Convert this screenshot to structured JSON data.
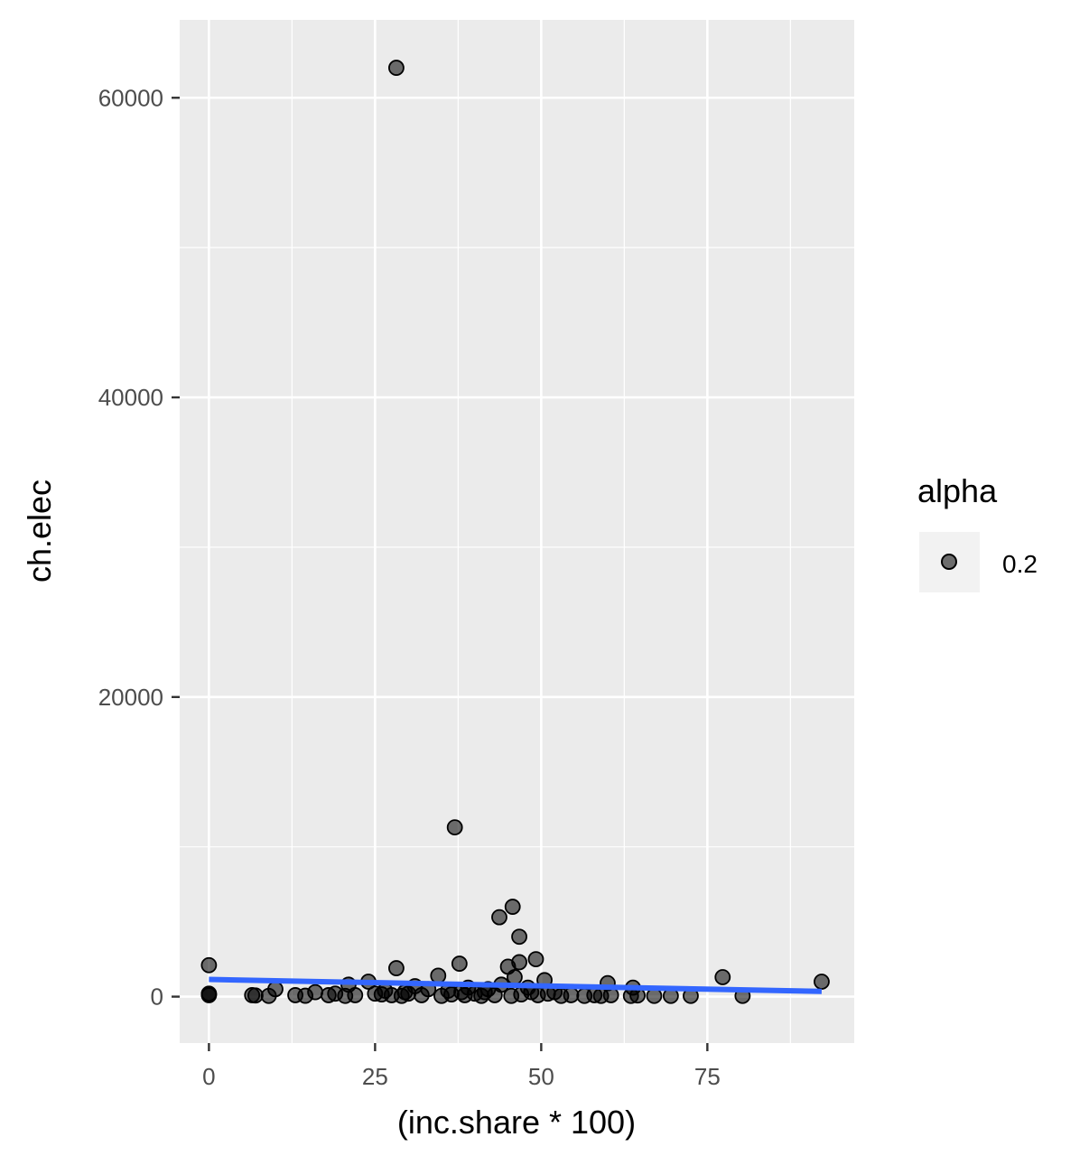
{
  "chart_data": {
    "type": "scatter",
    "title": "",
    "xlabel": "(inc.share * 100)",
    "ylabel": "ch.elec",
    "xlim": [
      -4.4,
      97.1
    ],
    "ylim": [
      -3100,
      65200
    ],
    "x_ticks": [
      0,
      25,
      50,
      75
    ],
    "y_ticks": [
      0,
      20000,
      40000,
      60000
    ],
    "x_tick_labels": [
      "0",
      "25",
      "50",
      "75"
    ],
    "y_tick_labels": [
      "0",
      "20000",
      "40000",
      "60000"
    ],
    "grid": true,
    "legend": {
      "title": "alpha",
      "placement": "right",
      "entries": [
        "0.2"
      ]
    },
    "colors": {
      "panel": "#ebebeb",
      "grid": "#ffffff",
      "point": "#000000",
      "point_alpha": 0.55,
      "trend": "#3366ff"
    },
    "points": [
      [
        28.2,
        62000
      ],
      [
        37.0,
        11300
      ],
      [
        45.7,
        6000
      ],
      [
        43.7,
        5300
      ],
      [
        46.7,
        4000
      ],
      [
        49.2,
        2500
      ],
      [
        46.7,
        2300
      ],
      [
        37.7,
        2200
      ],
      [
        0,
        2100
      ],
      [
        28.2,
        1900
      ],
      [
        45.0,
        2000
      ],
      [
        34.5,
        1400
      ],
      [
        46.0,
        1300
      ],
      [
        77.3,
        1300
      ],
      [
        50.5,
        1100
      ],
      [
        60.0,
        900
      ],
      [
        92.2,
        1000
      ],
      [
        24.0,
        1000
      ],
      [
        63.8,
        600
      ],
      [
        10.0,
        500
      ],
      [
        16.0,
        300
      ],
      [
        21.0,
        800
      ],
      [
        31.0,
        700
      ],
      [
        33.0,
        500
      ],
      [
        39.0,
        600
      ],
      [
        42.0,
        500
      ],
      [
        44.0,
        800
      ],
      [
        48.0,
        600
      ],
      [
        52.0,
        300
      ],
      [
        0,
        200
      ],
      [
        0,
        150
      ],
      [
        0,
        100
      ],
      [
        6.5,
        100
      ],
      [
        7.0,
        80
      ],
      [
        9.0,
        50
      ],
      [
        13.0,
        100
      ],
      [
        14.5,
        60
      ],
      [
        18.0,
        100
      ],
      [
        19.0,
        200
      ],
      [
        20.5,
        50
      ],
      [
        22.0,
        100
      ],
      [
        25.0,
        200
      ],
      [
        26.0,
        150
      ],
      [
        27.5,
        100
      ],
      [
        29.0,
        50
      ],
      [
        30.0,
        200
      ],
      [
        32.0,
        100
      ],
      [
        35.0,
        50
      ],
      [
        36.5,
        150
      ],
      [
        38.5,
        100
      ],
      [
        40.0,
        200
      ],
      [
        41.0,
        50
      ],
      [
        43.0,
        100
      ],
      [
        45.5,
        50
      ],
      [
        47.0,
        150
      ],
      [
        49.5,
        100
      ],
      [
        51.0,
        200
      ],
      [
        53.0,
        50
      ],
      [
        54.5,
        100
      ],
      [
        56.5,
        50
      ],
      [
        58.0,
        100
      ],
      [
        59.0,
        50
      ],
      [
        60.5,
        100
      ],
      [
        63.5,
        50
      ],
      [
        64.5,
        80
      ],
      [
        67.0,
        50
      ],
      [
        69.5,
        50
      ],
      [
        72.5,
        50
      ],
      [
        80.3,
        50
      ],
      [
        26.5,
        400
      ],
      [
        29.5,
        300
      ],
      [
        36.0,
        400
      ],
      [
        38.0,
        300
      ],
      [
        41.5,
        300
      ],
      [
        48.5,
        300
      ]
    ],
    "trend_line": {
      "x": [
        0,
        92.2
      ],
      "y": [
        1150,
        350
      ]
    }
  }
}
